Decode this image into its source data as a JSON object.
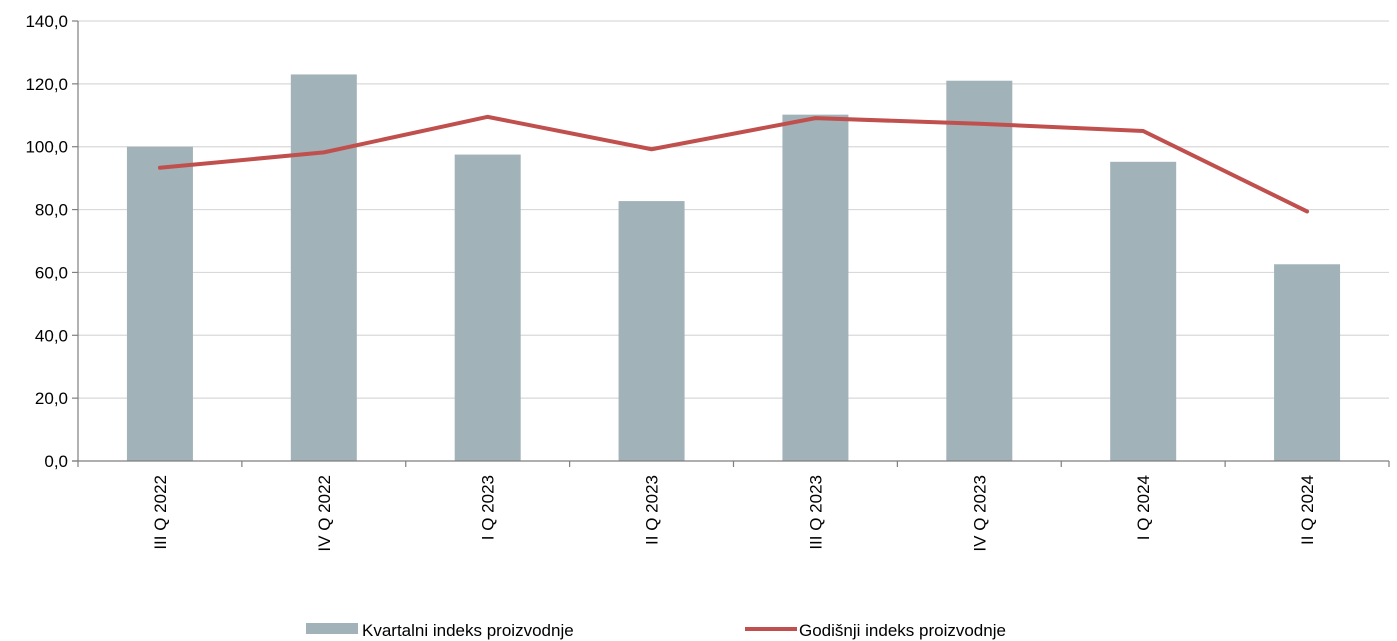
{
  "chart_data": {
    "type": "bar",
    "title": "",
    "xlabel": "",
    "ylabel": "",
    "categories": [
      "III Q 2022",
      "IV Q 2022",
      "I Q 2023",
      "II Q 2023",
      "III Q 2023",
      "IV Q 2023",
      "I Q 2024",
      "II Q 2024"
    ],
    "series": [
      {
        "name": "Kvartalni indeks proizvodnje",
        "type": "bar",
        "color": "#a1b3b9",
        "values": [
          100.0,
          123.0,
          97.5,
          82.7,
          110.2,
          121.0,
          95.2,
          62.6
        ]
      },
      {
        "name": "Godišnji indeks proizvodnje",
        "type": "line",
        "color": "#c0504d",
        "values": [
          93.3,
          98.2,
          109.5,
          99.2,
          109.1,
          107.3,
          105.0,
          79.4
        ]
      }
    ],
    "yticks": [
      "0,0",
      "20,0",
      "40,0",
      "60,0",
      "80,0",
      "100,0",
      "120,0",
      "140,0"
    ],
    "ylim": [
      0,
      140
    ],
    "grid": true,
    "legend_position": "bottom"
  }
}
